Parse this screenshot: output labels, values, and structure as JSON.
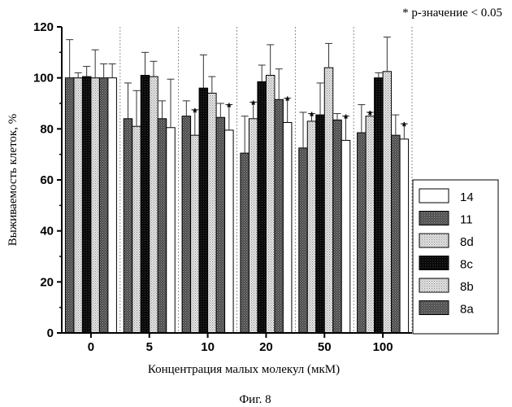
{
  "chart_data": {
    "type": "bar",
    "significance_note": "* р-значение < 0.05",
    "xlabel": "Концентрация малых молекул (мкМ)",
    "ylabel": "Выживаемость клеток, %",
    "caption": "Фиг. 8",
    "ylim": [
      0,
      120
    ],
    "yticks": [
      "0",
      "20",
      "40",
      "60",
      "80",
      "100",
      "120"
    ],
    "categories": [
      "0",
      "5",
      "10",
      "20",
      "50",
      "100"
    ],
    "grid": false,
    "legend_position": "right",
    "series": [
      {
        "name": "8a",
        "fill": "#555555",
        "pattern": "dark-dots",
        "values": [
          100,
          84,
          85,
          70.5,
          72.5,
          78.5
        ],
        "errors": [
          15,
          14,
          6,
          14.5,
          14,
          11
        ],
        "significant": [
          false,
          false,
          false,
          false,
          false,
          false
        ]
      },
      {
        "name": "8b",
        "fill": "#d0d0d0",
        "pattern": "light-dots",
        "values": [
          100,
          81,
          77.5,
          84,
          83,
          85
        ],
        "errors": [
          2,
          14,
          10,
          6.5,
          3,
          1.5
        ],
        "significant": [
          false,
          false,
          true,
          true,
          true,
          true
        ]
      },
      {
        "name": "8c",
        "fill": "#111111",
        "pattern": "black",
        "values": [
          100.5,
          101,
          96,
          98.5,
          85.5,
          100
        ],
        "errors": [
          4,
          9,
          13,
          6.5,
          12.5,
          2
        ],
        "significant": [
          false,
          false,
          false,
          false,
          false,
          false
        ]
      },
      {
        "name": "8d",
        "fill": "#e8e8e8",
        "pattern": "light-dots",
        "values": [
          100,
          100.5,
          94,
          101,
          104,
          102.5
        ],
        "errors": [
          11,
          6,
          6.5,
          12,
          9.5,
          13.5
        ],
        "significant": [
          false,
          false,
          false,
          false,
          false,
          false
        ]
      },
      {
        "name": "11",
        "fill": "#6a6a6a",
        "pattern": "dark-dots",
        "values": [
          100,
          84,
          84.5,
          91.5,
          83.5,
          77.5
        ],
        "errors": [
          5.5,
          7,
          5.5,
          12,
          2.5,
          8
        ],
        "significant": [
          false,
          false,
          false,
          false,
          false,
          false
        ]
      },
      {
        "name": "14",
        "fill": "#ffffff",
        "pattern": "white",
        "values": [
          100,
          80.5,
          79.5,
          82.5,
          75.5,
          76
        ],
        "errors": [
          5.5,
          19,
          10,
          9.5,
          9.5,
          6
        ],
        "significant": [
          false,
          false,
          true,
          true,
          true,
          true
        ]
      }
    ],
    "legend_order": [
      "14",
      "11",
      "8d",
      "8c",
      "8b",
      "8a"
    ]
  }
}
